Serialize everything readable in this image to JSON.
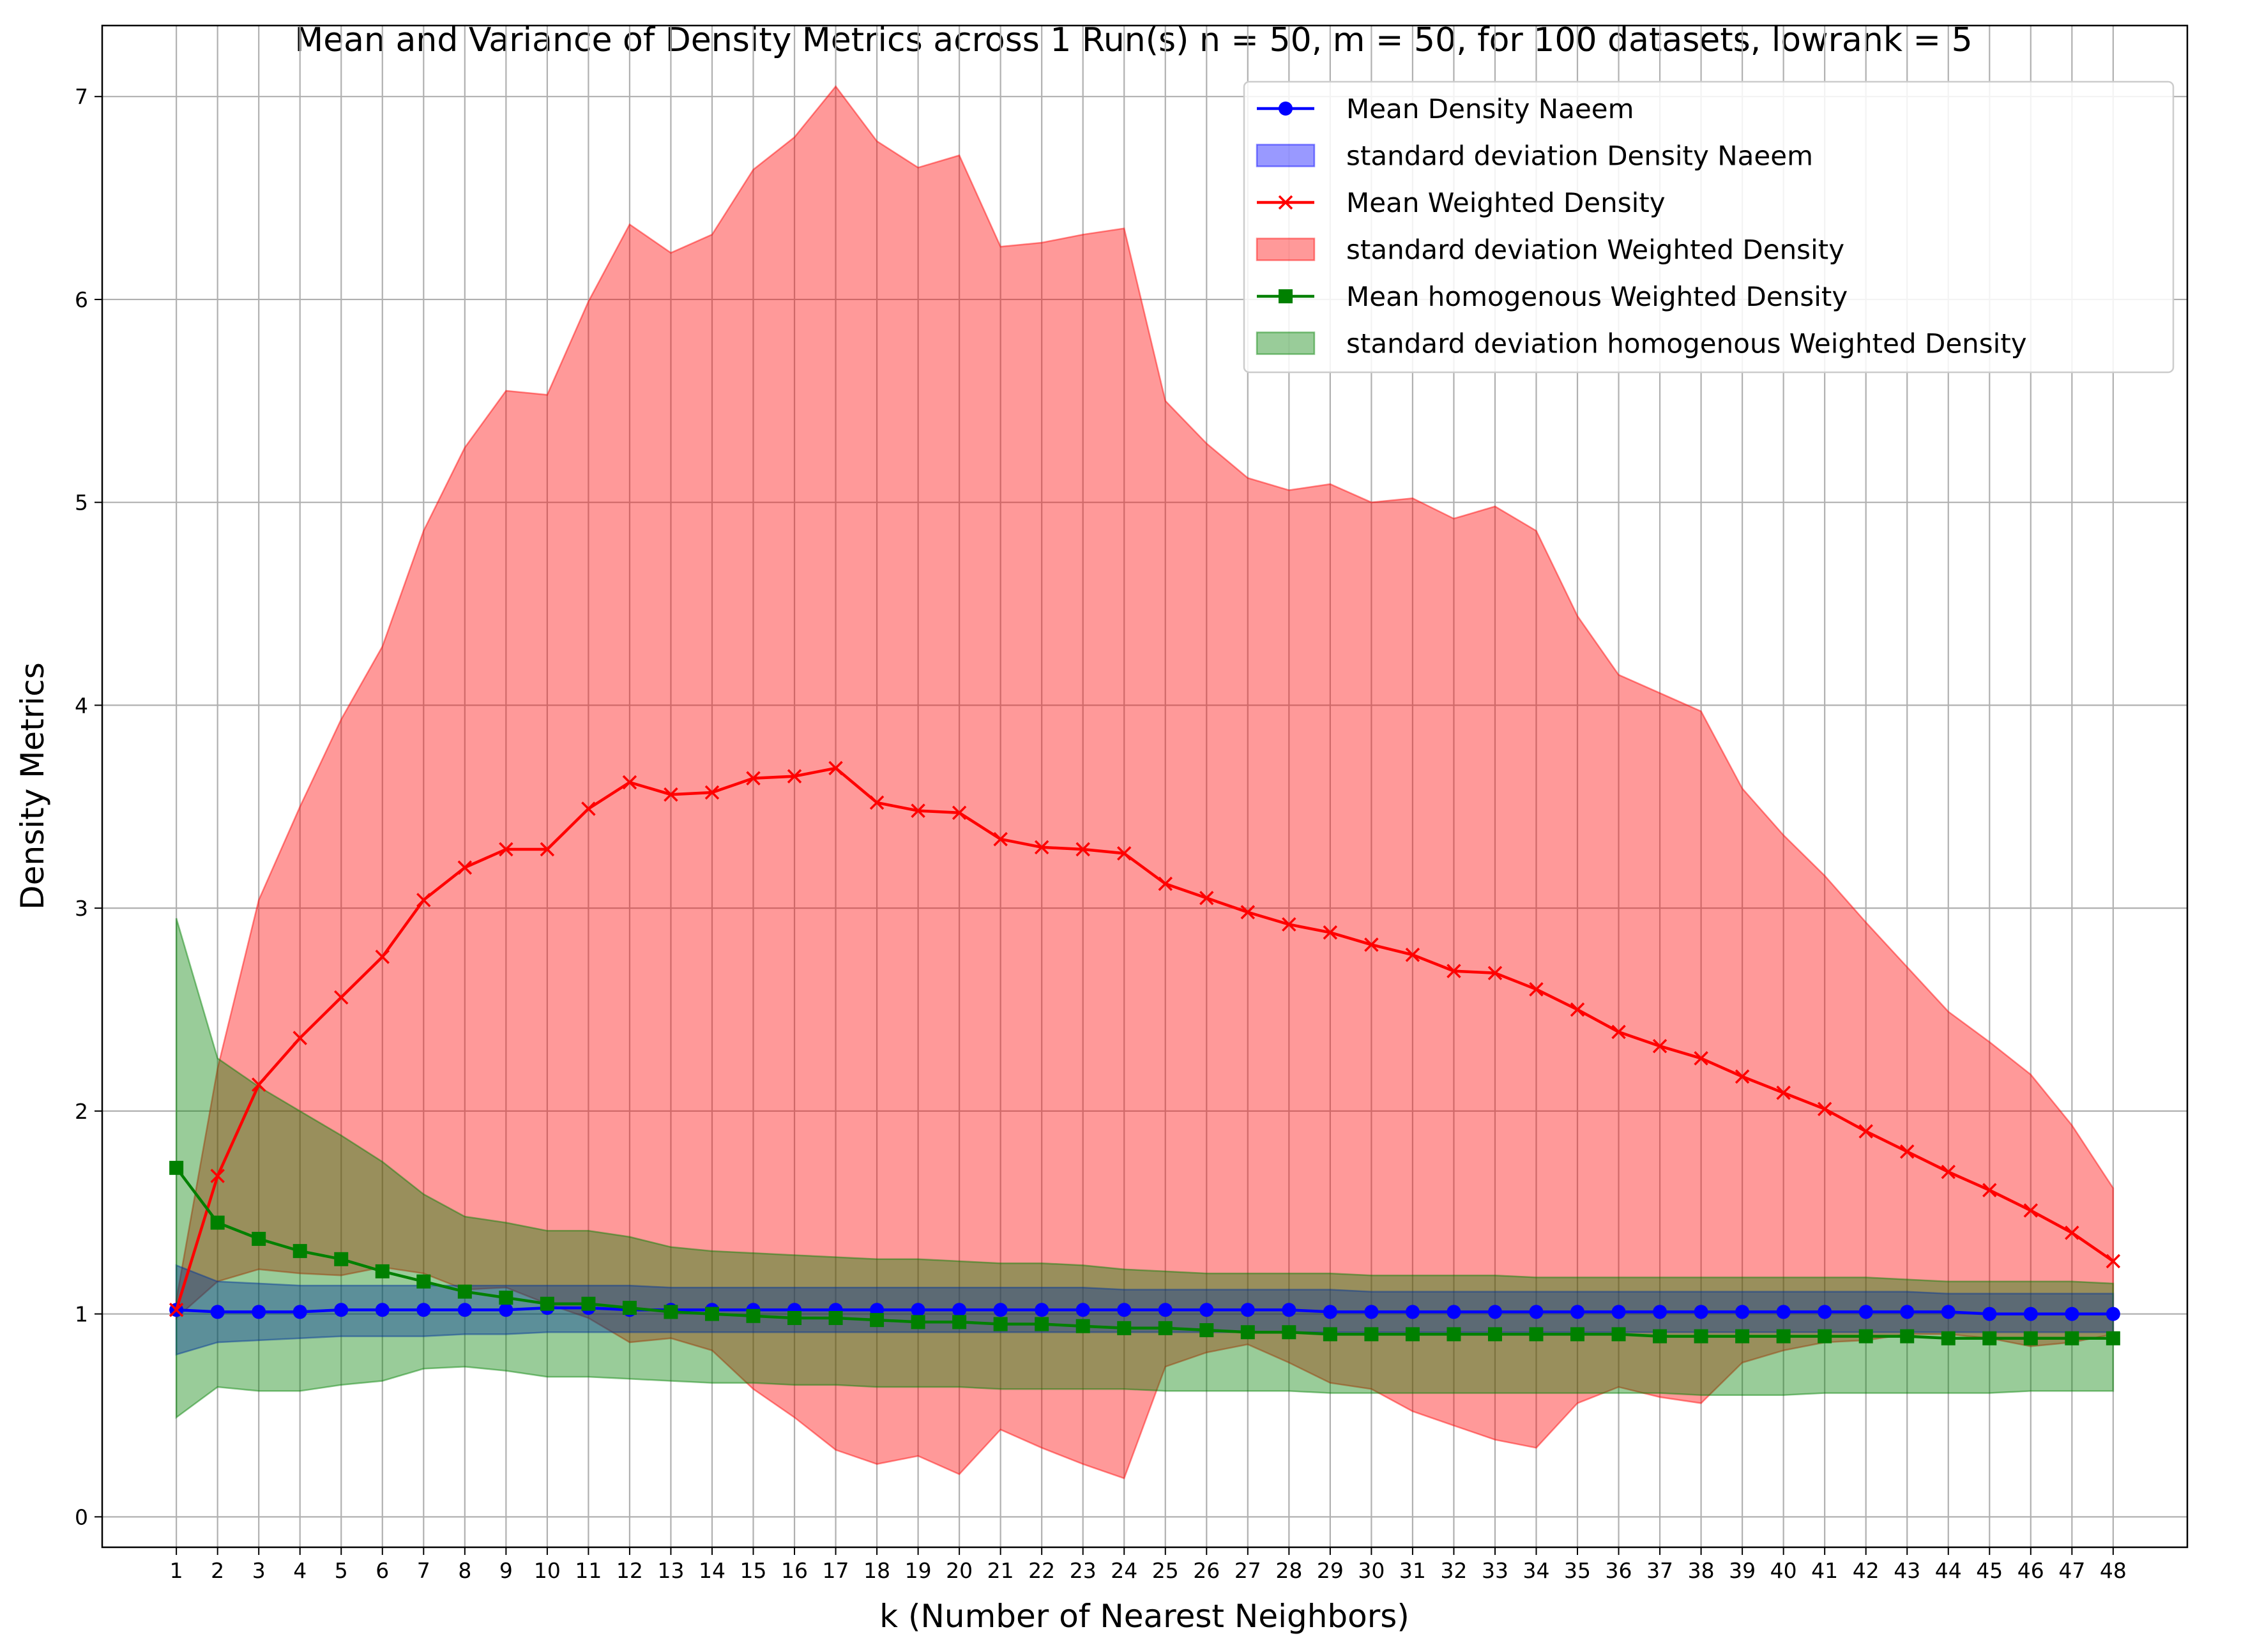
{
  "chart_data": {
    "type": "line",
    "title": "Mean and Variance of Density Metrics across 1 Run(s) n  = 50, m  = 50, for 100 datasets, lowrank = 5",
    "xlabel": "k (Number of Nearest Neighbors)",
    "ylabel": "Density Metrics",
    "xlim": [
      -0.8,
      49.8
    ],
    "ylim": [
      -0.15,
      7.35
    ],
    "yticks": [
      0,
      1,
      2,
      3,
      4,
      5,
      6,
      7
    ],
    "grid": true,
    "legend_position": "top-right",
    "x": [
      1,
      2,
      3,
      4,
      5,
      6,
      7,
      8,
      9,
      10,
      11,
      12,
      13,
      14,
      15,
      16,
      17,
      18,
      19,
      20,
      21,
      22,
      23,
      24,
      25,
      26,
      27,
      28,
      29,
      30,
      31,
      32,
      33,
      34,
      35,
      36,
      37,
      38,
      39,
      40,
      41,
      42,
      43,
      44,
      45,
      46,
      47,
      48
    ],
    "series": [
      {
        "name": "Mean Density Naeem",
        "band_name": "standard deviation Density Naeem",
        "color": "#0000ff",
        "marker": "circle",
        "values": [
          1.02,
          1.01,
          1.01,
          1.01,
          1.02,
          1.02,
          1.02,
          1.02,
          1.02,
          1.03,
          1.03,
          1.02,
          1.02,
          1.02,
          1.02,
          1.02,
          1.02,
          1.02,
          1.02,
          1.02,
          1.02,
          1.02,
          1.02,
          1.02,
          1.02,
          1.02,
          1.02,
          1.02,
          1.01,
          1.01,
          1.01,
          1.01,
          1.01,
          1.01,
          1.01,
          1.01,
          1.01,
          1.01,
          1.01,
          1.01,
          1.01,
          1.01,
          1.01,
          1.01,
          1.0,
          1.0,
          1.0,
          1.0
        ],
        "lower": [
          0.8,
          0.86,
          0.87,
          0.88,
          0.89,
          0.89,
          0.89,
          0.9,
          0.9,
          0.91,
          0.91,
          0.91,
          0.91,
          0.91,
          0.91,
          0.91,
          0.91,
          0.91,
          0.91,
          0.91,
          0.91,
          0.91,
          0.91,
          0.91,
          0.91,
          0.91,
          0.91,
          0.91,
          0.91,
          0.91,
          0.91,
          0.91,
          0.91,
          0.91,
          0.91,
          0.91,
          0.91,
          0.91,
          0.91,
          0.91,
          0.91,
          0.91,
          0.91,
          0.91,
          0.91,
          0.91,
          0.91,
          0.91
        ],
        "upper": [
          1.24,
          1.16,
          1.15,
          1.14,
          1.14,
          1.14,
          1.14,
          1.14,
          1.14,
          1.14,
          1.14,
          1.14,
          1.13,
          1.13,
          1.13,
          1.13,
          1.13,
          1.13,
          1.13,
          1.13,
          1.13,
          1.13,
          1.13,
          1.12,
          1.12,
          1.12,
          1.12,
          1.12,
          1.12,
          1.11,
          1.11,
          1.11,
          1.11,
          1.11,
          1.11,
          1.11,
          1.11,
          1.11,
          1.11,
          1.11,
          1.11,
          1.11,
          1.11,
          1.1,
          1.1,
          1.1,
          1.1,
          1.1
        ]
      },
      {
        "name": "Mean Weighted Density",
        "band_name": "standard deviation Weighted Density",
        "color": "#ff0000",
        "marker": "x",
        "values": [
          1.02,
          1.68,
          2.13,
          2.36,
          2.56,
          2.76,
          3.04,
          3.2,
          3.29,
          3.29,
          3.49,
          3.62,
          3.56,
          3.57,
          3.64,
          3.65,
          3.69,
          3.52,
          3.48,
          3.47,
          3.34,
          3.3,
          3.29,
          3.27,
          3.12,
          3.05,
          2.98,
          2.92,
          2.88,
          2.82,
          2.77,
          2.69,
          2.68,
          2.6,
          2.5,
          2.39,
          2.32,
          2.26,
          2.17,
          2.09,
          2.01,
          1.9,
          1.8,
          1.7,
          1.61,
          1.51,
          1.4,
          1.26
        ],
        "lower": [
          0.98,
          1.16,
          1.22,
          1.2,
          1.19,
          1.23,
          1.2,
          1.12,
          1.13,
          1.05,
          0.98,
          0.86,
          0.88,
          0.82,
          0.63,
          0.49,
          0.33,
          0.26,
          0.3,
          0.21,
          0.43,
          0.34,
          0.26,
          0.19,
          0.74,
          0.81,
          0.85,
          0.76,
          0.66,
          0.63,
          0.52,
          0.45,
          0.38,
          0.34,
          0.56,
          0.64,
          0.59,
          0.56,
          0.76,
          0.82,
          0.86,
          0.87,
          0.9,
          0.9,
          0.88,
          0.84,
          0.86,
          0.9
        ],
        "upper": [
          1.07,
          2.21,
          3.04,
          3.5,
          3.93,
          4.29,
          4.86,
          5.27,
          5.55,
          5.53,
          5.99,
          6.37,
          6.23,
          6.32,
          6.64,
          6.8,
          7.05,
          6.78,
          6.65,
          6.71,
          6.26,
          6.28,
          6.32,
          6.35,
          5.5,
          5.29,
          5.12,
          5.06,
          5.09,
          5.0,
          5.02,
          4.92,
          4.98,
          4.86,
          4.44,
          4.15,
          4.06,
          3.97,
          3.59,
          3.36,
          3.16,
          2.93,
          2.71,
          2.49,
          2.34,
          2.18,
          1.93,
          1.62
        ]
      },
      {
        "name": "Mean homogenous Weighted Density",
        "band_name": "standard deviation homogenous Weighted Density",
        "color": "#008000",
        "marker": "square",
        "values": [
          1.72,
          1.45,
          1.37,
          1.31,
          1.27,
          1.21,
          1.16,
          1.11,
          1.08,
          1.05,
          1.05,
          1.03,
          1.01,
          1.0,
          0.99,
          0.98,
          0.98,
          0.97,
          0.96,
          0.96,
          0.95,
          0.95,
          0.94,
          0.93,
          0.93,
          0.92,
          0.91,
          0.91,
          0.9,
          0.9,
          0.9,
          0.9,
          0.9,
          0.9,
          0.9,
          0.9,
          0.89,
          0.89,
          0.89,
          0.89,
          0.89,
          0.89,
          0.89,
          0.88,
          0.88,
          0.88,
          0.88,
          0.88
        ],
        "lower": [
          0.49,
          0.64,
          0.62,
          0.62,
          0.65,
          0.67,
          0.73,
          0.74,
          0.72,
          0.69,
          0.69,
          0.68,
          0.67,
          0.66,
          0.66,
          0.65,
          0.65,
          0.64,
          0.64,
          0.64,
          0.63,
          0.63,
          0.63,
          0.63,
          0.62,
          0.62,
          0.62,
          0.62,
          0.61,
          0.61,
          0.61,
          0.61,
          0.61,
          0.61,
          0.61,
          0.61,
          0.61,
          0.6,
          0.6,
          0.6,
          0.61,
          0.61,
          0.61,
          0.61,
          0.61,
          0.62,
          0.62,
          0.62
        ],
        "upper": [
          2.95,
          2.26,
          2.12,
          2.0,
          1.88,
          1.75,
          1.59,
          1.48,
          1.45,
          1.41,
          1.41,
          1.38,
          1.33,
          1.31,
          1.3,
          1.29,
          1.28,
          1.27,
          1.27,
          1.26,
          1.25,
          1.25,
          1.24,
          1.22,
          1.21,
          1.2,
          1.2,
          1.2,
          1.2,
          1.19,
          1.19,
          1.19,
          1.19,
          1.18,
          1.18,
          1.18,
          1.18,
          1.18,
          1.18,
          1.18,
          1.18,
          1.18,
          1.17,
          1.16,
          1.16,
          1.16,
          1.16,
          1.15
        ]
      }
    ]
  }
}
